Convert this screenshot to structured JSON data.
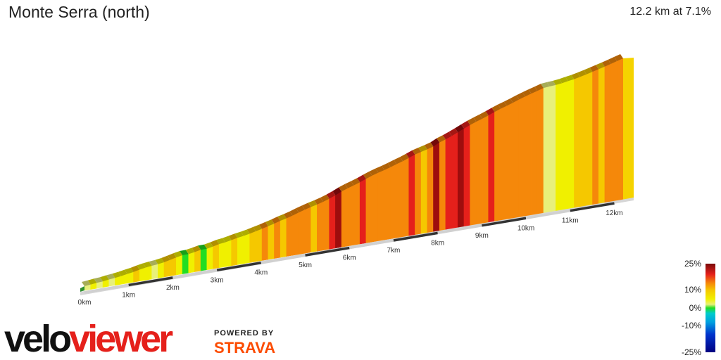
{
  "header": {
    "title": "Monte Serra (north)",
    "summary": "12.2 km at 7.1%"
  },
  "chart_data": {
    "type": "area",
    "title": "Monte Serra (north)",
    "xlabel": "",
    "ylabel": "",
    "distance_km": 12.2,
    "average_gradient_pct": 7.1,
    "x_ticks": [
      "0km",
      "1km",
      "2km",
      "3km",
      "4km",
      "5km",
      "6km",
      "7km",
      "8km",
      "9km",
      "10km",
      "11km",
      "12km"
    ],
    "gradient_segments_pct": [
      3,
      4,
      2,
      5,
      3,
      4,
      6,
      5,
      7,
      6,
      4,
      3,
      5,
      7,
      8,
      6,
      1,
      5,
      7,
      0,
      6,
      8,
      4,
      6,
      7,
      5,
      6,
      8,
      7,
      9,
      8,
      10,
      8,
      9,
      11,
      10,
      9,
      8,
      9,
      11,
      13,
      15,
      12,
      10,
      11,
      13,
      12,
      10,
      9,
      10,
      11,
      10,
      12,
      13,
      9,
      8,
      10,
      16,
      11,
      13,
      14,
      15,
      14,
      12,
      11,
      12,
      13,
      12,
      10,
      11,
      12,
      11,
      10,
      9,
      10,
      3,
      2,
      4,
      6,
      5,
      7,
      8,
      8,
      9,
      8,
      9,
      10,
      9
    ],
    "legend": {
      "title": "",
      "ticks": [
        "25%",
        "10%",
        "0%",
        "-10%",
        "-25%"
      ],
      "values": [
        25,
        10,
        0,
        -10,
        -25
      ]
    },
    "colors": {
      "strong_red": "#9e0d0d",
      "red": "#e5201b",
      "orange": "#f5880a",
      "yellow_orange": "#f5c800",
      "yellow": "#f0f000",
      "light_yellow": "#e8f07a",
      "green": "#22dd22",
      "cyan": "#00cccc",
      "blue": "#0033cc",
      "navy": "#000080"
    }
  },
  "branding": {
    "logo_text_velo": "velo",
    "logo_text_viewer": "viewer",
    "powered_by": "POWERED BY",
    "strava": "STRAVA"
  }
}
